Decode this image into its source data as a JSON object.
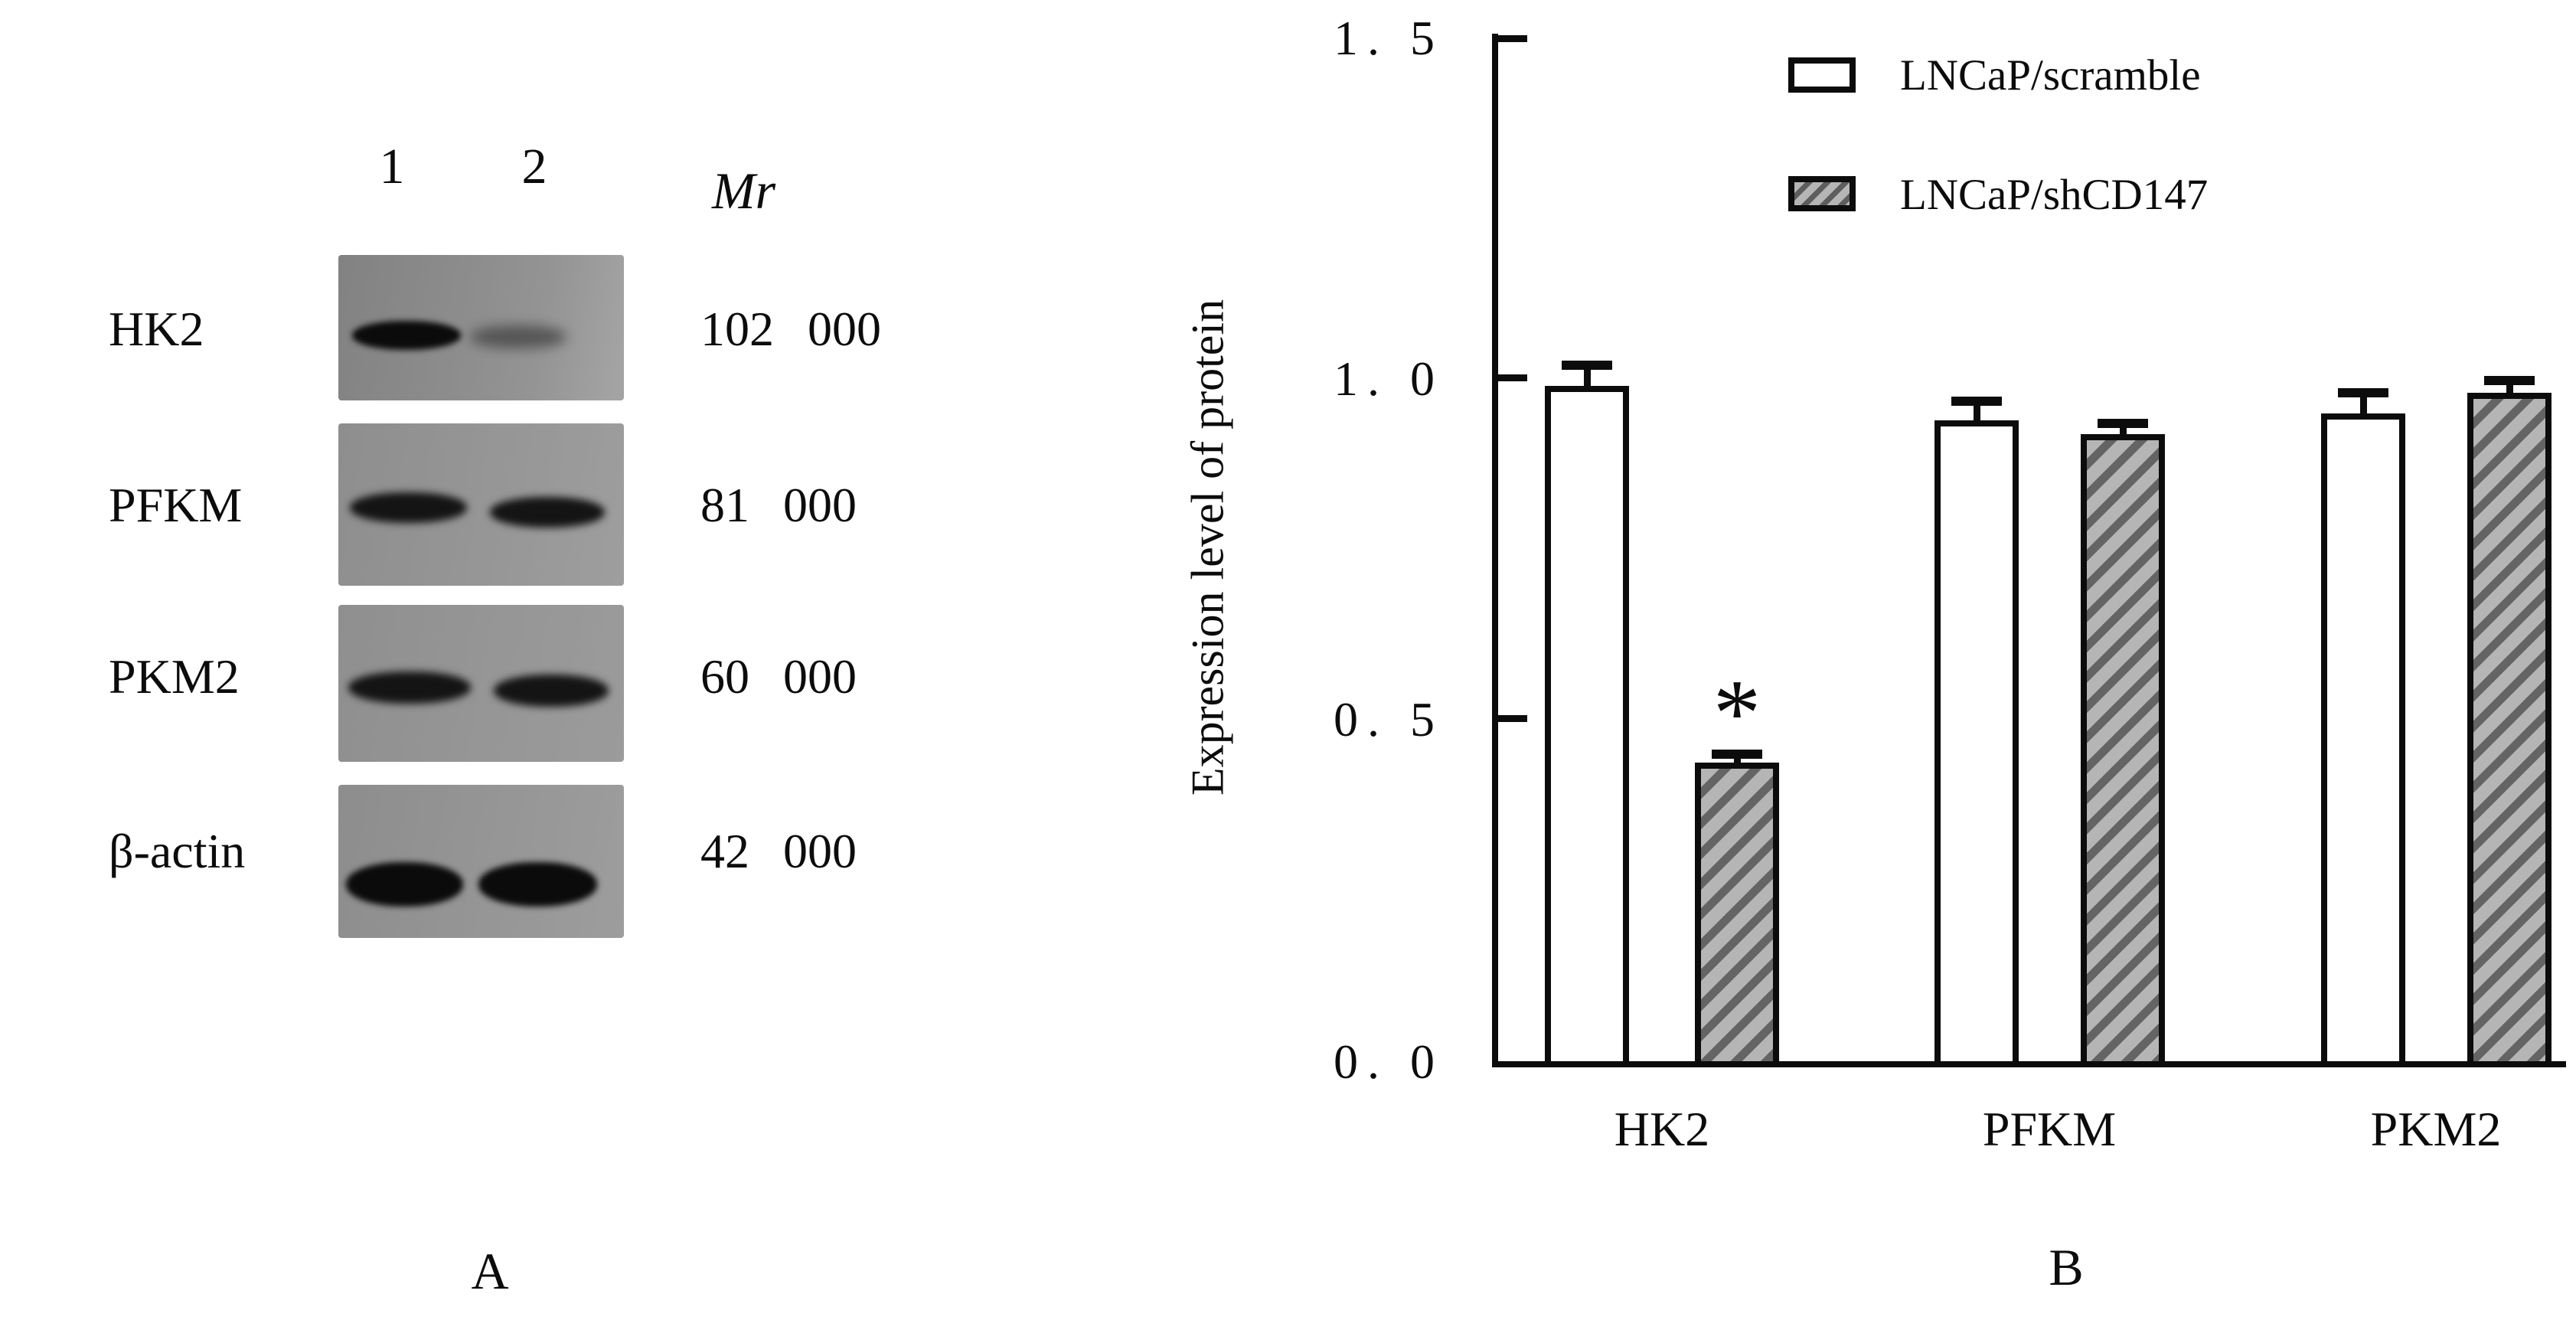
{
  "panel_a": {
    "lane_labels": [
      "1",
      "2"
    ],
    "mr_header": "Mr",
    "rows": [
      {
        "protein": "HK2",
        "mr": "102 000"
      },
      {
        "protein": "PFKM",
        "mr": "81 000"
      },
      {
        "protein": "PKM2",
        "mr": "60 000"
      },
      {
        "protein": "β-actin",
        "mr": "42 000"
      }
    ],
    "panel_label": "A"
  },
  "panel_b": {
    "ylabel": "Expression level of protein",
    "ytick_labels": [
      "1. 5",
      "1. 0",
      "0. 5",
      "0. 0"
    ],
    "categories": [
      "HK2",
      "PFKM",
      "PKM2"
    ],
    "legend": [
      {
        "label": "LNCaP/scramble",
        "fill": "white"
      },
      {
        "label": "LNCaP/shCD147",
        "fill": "hatched"
      }
    ],
    "significance_marker": "*",
    "panel_label": "B"
  },
  "chart_data": {
    "type": "bar",
    "title": "",
    "categories": [
      "HK2",
      "PFKM",
      "PKM2"
    ],
    "series": [
      {
        "name": "LNCaP/scramble",
        "fill": "white",
        "values": [
          0.99,
          0.94,
          0.95
        ],
        "errors": [
          0.03,
          0.028,
          0.03
        ]
      },
      {
        "name": "LNCaP/shCD147",
        "fill": "hatched",
        "values": [
          0.44,
          0.92,
          0.98
        ],
        "errors": [
          0.012,
          0.015,
          0.018
        ]
      }
    ],
    "annotations": [
      {
        "text": "*",
        "category": "HK2",
        "series": "LNCaP/shCD147"
      }
    ],
    "xlabel": "",
    "ylabel": "Expression level of protein",
    "ylim": [
      0,
      1.5
    ],
    "yticks": [
      0.0,
      0.5,
      1.0,
      1.5
    ],
    "legend_position": "top-right",
    "grid": false,
    "bar_colors": {
      "white": "#ffffff",
      "hatched_base": "#b5b5b5",
      "hatched_stripe": "#646464",
      "outline": "#0c0c0c"
    }
  }
}
